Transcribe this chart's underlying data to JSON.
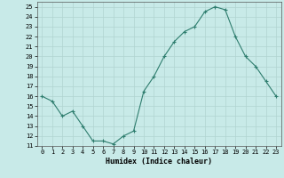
{
  "x": [
    0,
    1,
    2,
    3,
    4,
    5,
    6,
    7,
    8,
    9,
    10,
    11,
    12,
    13,
    14,
    15,
    16,
    17,
    18,
    19,
    20,
    21,
    22,
    23
  ],
  "y": [
    16,
    15.5,
    14,
    14.5,
    13,
    11.5,
    11.5,
    11.2,
    12,
    12.5,
    16.5,
    18,
    20,
    21.5,
    22.5,
    23,
    24.5,
    25,
    24.7,
    22,
    20,
    19,
    17.5,
    16
  ],
  "line_color": "#2e7d6e",
  "marker": "+",
  "marker_size": 3,
  "marker_color": "#2e7d6e",
  "bg_color": "#c8eae8",
  "grid_color": "#b0d4d0",
  "xlabel": "Humidex (Indice chaleur)",
  "xlim": [
    -0.5,
    23.5
  ],
  "ylim": [
    11,
    25.5
  ],
  "yticks": [
    11,
    12,
    13,
    14,
    15,
    16,
    17,
    18,
    19,
    20,
    21,
    22,
    23,
    24,
    25
  ],
  "xticks": [
    0,
    1,
    2,
    3,
    4,
    5,
    6,
    7,
    8,
    9,
    10,
    11,
    12,
    13,
    14,
    15,
    16,
    17,
    18,
    19,
    20,
    21,
    22,
    23
  ],
  "tick_fontsize": 5.0,
  "label_fontsize": 6.0,
  "line_width": 0.8
}
